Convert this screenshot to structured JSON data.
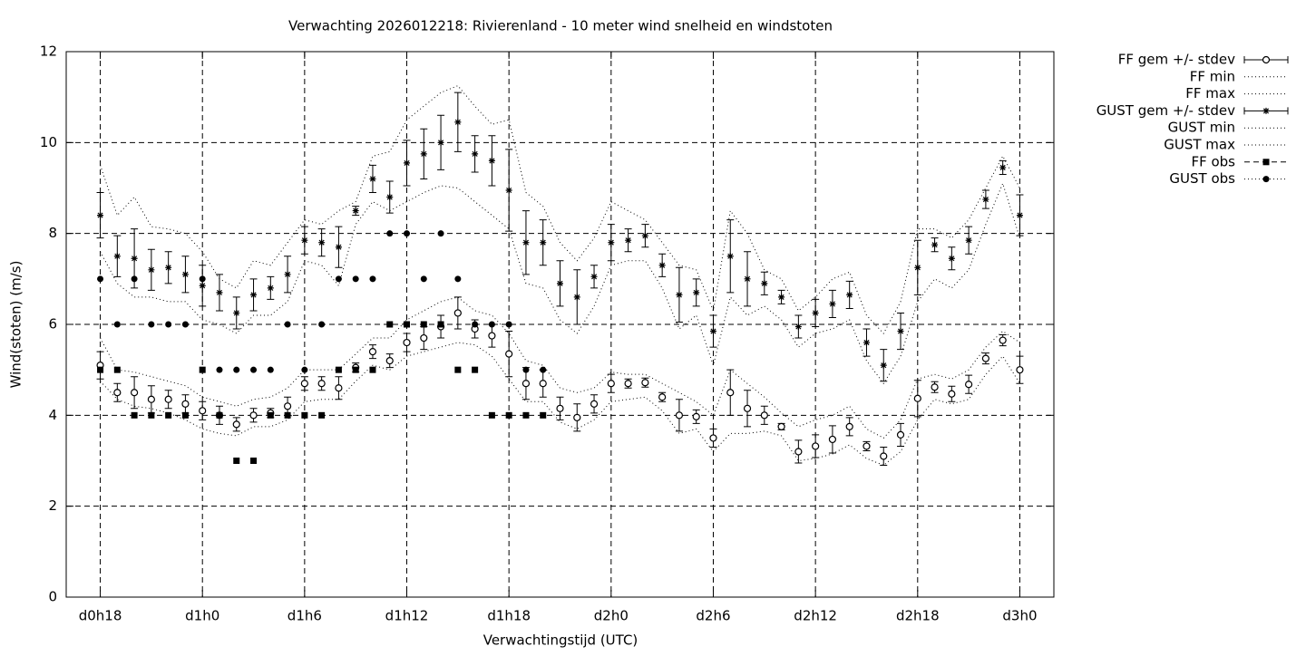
{
  "chart_data": {
    "type": "line",
    "title": "Verwachting 2026012218: Rivierenland - 10 meter wind snelheid en windstoten",
    "x_label": "Verwachtingstijd (UTC)",
    "y_label": "Wind(stoten) (m/s)",
    "x": [
      18,
      19,
      20,
      21,
      22,
      23,
      24,
      25,
      26,
      27,
      28,
      29,
      30,
      31,
      32,
      33,
      34,
      35,
      36,
      37,
      38,
      39,
      40,
      41,
      42,
      43,
      44,
      45,
      46,
      47,
      48,
      49,
      50,
      51,
      52,
      53,
      54,
      55,
      56,
      57,
      58,
      59,
      60,
      61,
      62,
      63,
      64,
      65,
      66,
      67,
      68,
      69,
      70,
      71,
      72
    ],
    "xlim": [
      16,
      74
    ],
    "xticks": [
      {
        "value": 18,
        "label": "d0h18"
      },
      {
        "value": 24,
        "label": "d1h0"
      },
      {
        "value": 30,
        "label": "d1h6"
      },
      {
        "value": 36,
        "label": "d1h12"
      },
      {
        "value": 42,
        "label": "d1h18"
      },
      {
        "value": 48,
        "label": "d2h0"
      },
      {
        "value": 54,
        "label": "d2h6"
      },
      {
        "value": 60,
        "label": "d2h12"
      },
      {
        "value": 66,
        "label": "d2h18"
      },
      {
        "value": 72,
        "label": "d3h0"
      }
    ],
    "ylim": [
      0,
      12
    ],
    "yticks": [
      0,
      2,
      4,
      6,
      8,
      10,
      12
    ],
    "grid": true,
    "legend": "outside-top-right",
    "series": [
      {
        "name": "FF gem +/- stdev",
        "color": "#000000",
        "style": "errorbars",
        "marker": "circle",
        "values": [
          5.1,
          4.5,
          4.5,
          4.35,
          4.35,
          4.25,
          4.1,
          4.0,
          3.8,
          4.0,
          4.05,
          4.2,
          4.7,
          4.7,
          4.6,
          5.05,
          5.4,
          5.2,
          5.6,
          5.7,
          5.95,
          6.25,
          5.9,
          5.75,
          5.35,
          4.7,
          4.7,
          4.15,
          3.95,
          4.25,
          4.7,
          4.7,
          4.72,
          4.4,
          4.0,
          3.97,
          3.5,
          4.5,
          4.15,
          4.0,
          3.75,
          3.2,
          3.32,
          3.47,
          3.75,
          3.32,
          3.1,
          3.57,
          4.37,
          4.62,
          4.47,
          4.68,
          5.25,
          5.65,
          5.0
        ],
        "errors": [
          0.3,
          0.2,
          0.35,
          0.3,
          0.2,
          0.2,
          0.2,
          0.2,
          0.15,
          0.15,
          0.1,
          0.2,
          0.15,
          0.15,
          0.25,
          0.1,
          0.15,
          0.15,
          0.2,
          0.25,
          0.25,
          0.35,
          0.2,
          0.25,
          0.5,
          0.35,
          0.3,
          0.25,
          0.3,
          0.2,
          0.2,
          0.1,
          0.1,
          0.1,
          0.35,
          0.15,
          0.2,
          0.5,
          0.4,
          0.2,
          0.07,
          0.25,
          0.25,
          0.3,
          0.2,
          0.1,
          0.2,
          0.25,
          0.4,
          0.12,
          0.17,
          0.2,
          0.12,
          0.12,
          0.3
        ]
      },
      {
        "name": "FF min",
        "color": "#000000",
        "style": "dotted",
        "values": [
          4.75,
          4.35,
          4.2,
          4.15,
          4.05,
          3.9,
          3.7,
          3.6,
          3.55,
          3.75,
          3.75,
          3.9,
          4.3,
          4.35,
          4.35,
          4.75,
          5.1,
          5.0,
          5.3,
          5.4,
          5.5,
          5.6,
          5.55,
          5.3,
          4.8,
          4.3,
          4.3,
          3.85,
          3.7,
          3.9,
          4.3,
          4.35,
          4.4,
          4.1,
          3.6,
          3.7,
          3.2,
          3.6,
          3.6,
          3.65,
          3.55,
          3.0,
          3.05,
          3.15,
          3.35,
          3.05,
          2.9,
          3.2,
          3.9,
          4.35,
          4.25,
          4.35,
          4.9,
          5.3,
          4.7
        ]
      },
      {
        "name": "FF max",
        "color": "#000000",
        "style": "dotted",
        "values": [
          5.7,
          5.0,
          4.95,
          4.85,
          4.75,
          4.65,
          4.4,
          4.3,
          4.2,
          4.35,
          4.4,
          4.6,
          5.0,
          5.0,
          5.0,
          5.35,
          5.7,
          5.7,
          6.1,
          6.3,
          6.5,
          6.6,
          6.3,
          6.2,
          5.8,
          5.2,
          5.1,
          4.6,
          4.5,
          4.6,
          4.95,
          4.9,
          4.9,
          4.7,
          4.5,
          4.3,
          4.0,
          5.0,
          4.7,
          4.4,
          4.05,
          3.75,
          3.9,
          4.0,
          4.2,
          3.7,
          3.5,
          3.9,
          4.8,
          4.9,
          4.8,
          5.0,
          5.5,
          5.85,
          5.6
        ]
      },
      {
        "name": "GUST gem +/- stdev",
        "color": "#000000",
        "style": "errorbars",
        "marker": "star",
        "values": [
          8.4,
          7.5,
          7.45,
          7.2,
          7.25,
          7.1,
          6.85,
          6.7,
          6.25,
          6.65,
          6.8,
          7.1,
          7.85,
          7.8,
          7.7,
          8.5,
          9.2,
          8.8,
          9.55,
          9.75,
          10.0,
          10.45,
          9.75,
          9.6,
          8.95,
          7.8,
          7.8,
          6.9,
          6.6,
          7.05,
          7.8,
          7.85,
          7.95,
          7.3,
          6.65,
          6.7,
          5.85,
          7.5,
          7.0,
          6.9,
          6.6,
          5.95,
          6.25,
          6.45,
          6.65,
          5.6,
          5.1,
          5.85,
          7.25,
          7.75,
          7.45,
          7.85,
          8.75,
          9.45,
          8.4
        ],
        "errors": [
          0.5,
          0.45,
          0.65,
          0.45,
          0.35,
          0.4,
          0.45,
          0.4,
          0.35,
          0.35,
          0.25,
          0.4,
          0.3,
          0.3,
          0.45,
          0.1,
          0.3,
          0.35,
          0.5,
          0.55,
          0.6,
          0.65,
          0.4,
          0.55,
          0.9,
          0.7,
          0.5,
          0.5,
          0.6,
          0.25,
          0.4,
          0.25,
          0.25,
          0.25,
          0.6,
          0.3,
          0.35,
          0.8,
          0.6,
          0.25,
          0.15,
          0.25,
          0.3,
          0.3,
          0.3,
          0.3,
          0.35,
          0.4,
          0.6,
          0.15,
          0.25,
          0.3,
          0.2,
          0.15,
          0.45
        ]
      },
      {
        "name": "GUST min",
        "color": "#000000",
        "style": "dotted",
        "values": [
          7.6,
          6.9,
          6.6,
          6.6,
          6.5,
          6.5,
          6.1,
          6.0,
          5.8,
          6.2,
          6.2,
          6.5,
          7.4,
          7.3,
          6.85,
          8.2,
          8.7,
          8.5,
          8.7,
          8.9,
          9.05,
          9.0,
          8.7,
          8.4,
          8.1,
          6.9,
          6.8,
          6.1,
          5.8,
          6.4,
          7.3,
          7.4,
          7.4,
          6.8,
          5.9,
          6.2,
          5.1,
          6.6,
          6.2,
          6.4,
          6.1,
          5.5,
          5.8,
          5.9,
          6.1,
          5.2,
          4.7,
          5.3,
          6.5,
          7.0,
          6.8,
          7.2,
          8.2,
          9.1,
          7.9
        ]
      },
      {
        "name": "GUST max",
        "color": "#000000",
        "style": "dotted",
        "values": [
          9.5,
          8.4,
          8.8,
          8.15,
          8.1,
          8.0,
          7.6,
          7.0,
          6.8,
          7.4,
          7.3,
          7.8,
          8.3,
          8.2,
          8.5,
          8.7,
          9.7,
          9.8,
          10.5,
          10.8,
          11.1,
          11.25,
          10.8,
          10.4,
          10.5,
          8.9,
          8.6,
          7.8,
          7.4,
          7.9,
          8.7,
          8.5,
          8.3,
          7.8,
          7.3,
          7.2,
          6.3,
          8.5,
          8.0,
          7.2,
          7.0,
          6.3,
          6.6,
          7.0,
          7.15,
          6.2,
          5.8,
          6.5,
          8.1,
          8.1,
          7.9,
          8.3,
          9.0,
          9.7,
          9.0
        ]
      },
      {
        "name": "FF obs",
        "color": "#000000",
        "style": "points",
        "marker": "square",
        "values": [
          5,
          5,
          4,
          4,
          4,
          4,
          5,
          4,
          3,
          3,
          4,
          4,
          4,
          4,
          5,
          5,
          5,
          6,
          6,
          6,
          6,
          5,
          5,
          4,
          4,
          4,
          4,
          null,
          null,
          null,
          null,
          null,
          null,
          null,
          null,
          null,
          null,
          null,
          null,
          null,
          null,
          null,
          null,
          null,
          null,
          null,
          null,
          null,
          null,
          null,
          null,
          null,
          null,
          null,
          null
        ]
      },
      {
        "name": "GUST obs",
        "color": "#000000",
        "style": "points",
        "marker": "dot",
        "values": [
          7,
          6,
          7,
          6,
          6,
          6,
          7,
          5,
          5,
          5,
          5,
          6,
          5,
          6,
          7,
          7,
          7,
          8,
          8,
          7,
          8,
          7,
          6,
          6,
          6,
          5,
          5,
          null,
          null,
          null,
          null,
          null,
          null,
          null,
          null,
          null,
          null,
          null,
          null,
          null,
          null,
          null,
          null,
          null,
          null,
          null,
          null,
          null,
          null,
          null,
          null,
          null,
          null,
          null,
          null
        ]
      }
    ]
  }
}
